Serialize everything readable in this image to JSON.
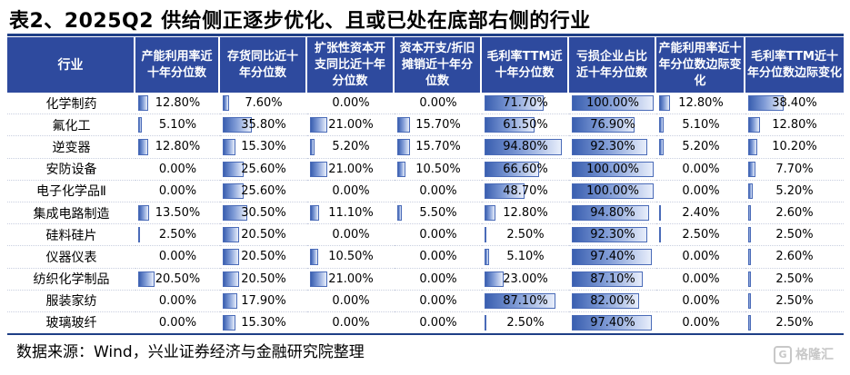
{
  "title": "表2、2025Q2 供给侧正逐步优化、且或已处在底部右侧的行业",
  "columns": [
    "行业",
    "产能利用率近十年分位数",
    "存货同比近十年分位数",
    "扩张性资本开支同比近十年分位数",
    "资本开支/折旧摊销近十年分位数",
    "毛利率TTM近十年分位数",
    "亏损企业占比近十年分位数",
    "产能利用率近十年分位数边际变化",
    "毛利率TTM近十年分位数边际变化"
  ],
  "rows": [
    {
      "industry": "化学制药",
      "values": [
        "12.80%",
        "7.60%",
        "0.00%",
        "0.00%",
        "71.70%",
        "100.00%",
        "12.80%",
        "38.40%"
      ],
      "pct": [
        12.8,
        7.6,
        0,
        0,
        71.7,
        100,
        12.8,
        38.4
      ]
    },
    {
      "industry": "氟化工",
      "values": [
        "5.10%",
        "35.80%",
        "21.00%",
        "15.70%",
        "61.50%",
        "76.90%",
        "5.10%",
        "12.80%"
      ],
      "pct": [
        5.1,
        35.8,
        21,
        15.7,
        61.5,
        76.9,
        5.1,
        12.8
      ]
    },
    {
      "industry": "逆变器",
      "values": [
        "12.80%",
        "15.30%",
        "5.20%",
        "15.70%",
        "94.80%",
        "92.30%",
        "5.20%",
        "10.20%"
      ],
      "pct": [
        12.8,
        15.3,
        5.2,
        15.7,
        94.8,
        92.3,
        5.2,
        10.2
      ]
    },
    {
      "industry": "安防设备",
      "values": [
        "0.00%",
        "25.60%",
        "21.00%",
        "10.50%",
        "66.60%",
        "100.00%",
        "0.00%",
        "7.70%"
      ],
      "pct": [
        0,
        25.6,
        21,
        10.5,
        66.6,
        100,
        0,
        7.7
      ]
    },
    {
      "industry": "电子化学品Ⅱ",
      "values": [
        "0.00%",
        "25.60%",
        "0.00%",
        "0.00%",
        "48.70%",
        "100.00%",
        "0.00%",
        "5.20%"
      ],
      "pct": [
        0,
        25.6,
        0,
        0,
        48.7,
        100,
        0,
        5.2
      ]
    },
    {
      "industry": "集成电路制造",
      "values": [
        "13.50%",
        "30.50%",
        "11.10%",
        "5.50%",
        "12.80%",
        "94.80%",
        "2.40%",
        "2.60%"
      ],
      "pct": [
        13.5,
        30.5,
        11.1,
        5.5,
        12.8,
        94.8,
        2.4,
        2.6
      ]
    },
    {
      "industry": "硅料硅片",
      "values": [
        "2.50%",
        "20.50%",
        "0.00%",
        "0.00%",
        "2.50%",
        "92.30%",
        "2.50%",
        "2.50%"
      ],
      "pct": [
        2.5,
        20.5,
        0,
        0,
        2.5,
        92.3,
        2.5,
        2.5
      ]
    },
    {
      "industry": "仪器仪表",
      "values": [
        "0.00%",
        "20.50%",
        "10.50%",
        "0.00%",
        "5.10%",
        "97.40%",
        "0.00%",
        "2.60%"
      ],
      "pct": [
        0,
        20.5,
        10.5,
        0,
        5.1,
        97.4,
        0,
        2.6
      ]
    },
    {
      "industry": "纺织化学制品",
      "values": [
        "20.50%",
        "20.50%",
        "21.00%",
        "0.00%",
        "23.00%",
        "87.10%",
        "0.00%",
        "2.50%"
      ],
      "pct": [
        20.5,
        20.5,
        21,
        0,
        23,
        87.1,
        0,
        2.5
      ]
    },
    {
      "industry": "服装家纺",
      "values": [
        "0.00%",
        "17.90%",
        "0.00%",
        "0.00%",
        "87.10%",
        "82.00%",
        "0.00%",
        "2.50%"
      ],
      "pct": [
        0,
        17.9,
        0,
        0,
        87.1,
        82,
        0,
        2.5
      ]
    },
    {
      "industry": "玻璃玻纤",
      "values": [
        "0.00%",
        "15.30%",
        "0.00%",
        "0.00%",
        "2.50%",
        "97.40%",
        "0.00%",
        "2.50%"
      ],
      "pct": [
        0,
        15.3,
        0,
        0,
        2.5,
        97.4,
        0,
        2.5
      ]
    }
  ],
  "source": "数据来源：Wind，兴业证券经济与金融研究院整理",
  "logo": "格隆汇",
  "colors": {
    "header": "#2e4a9e",
    "bar": "#3a5fb0"
  }
}
